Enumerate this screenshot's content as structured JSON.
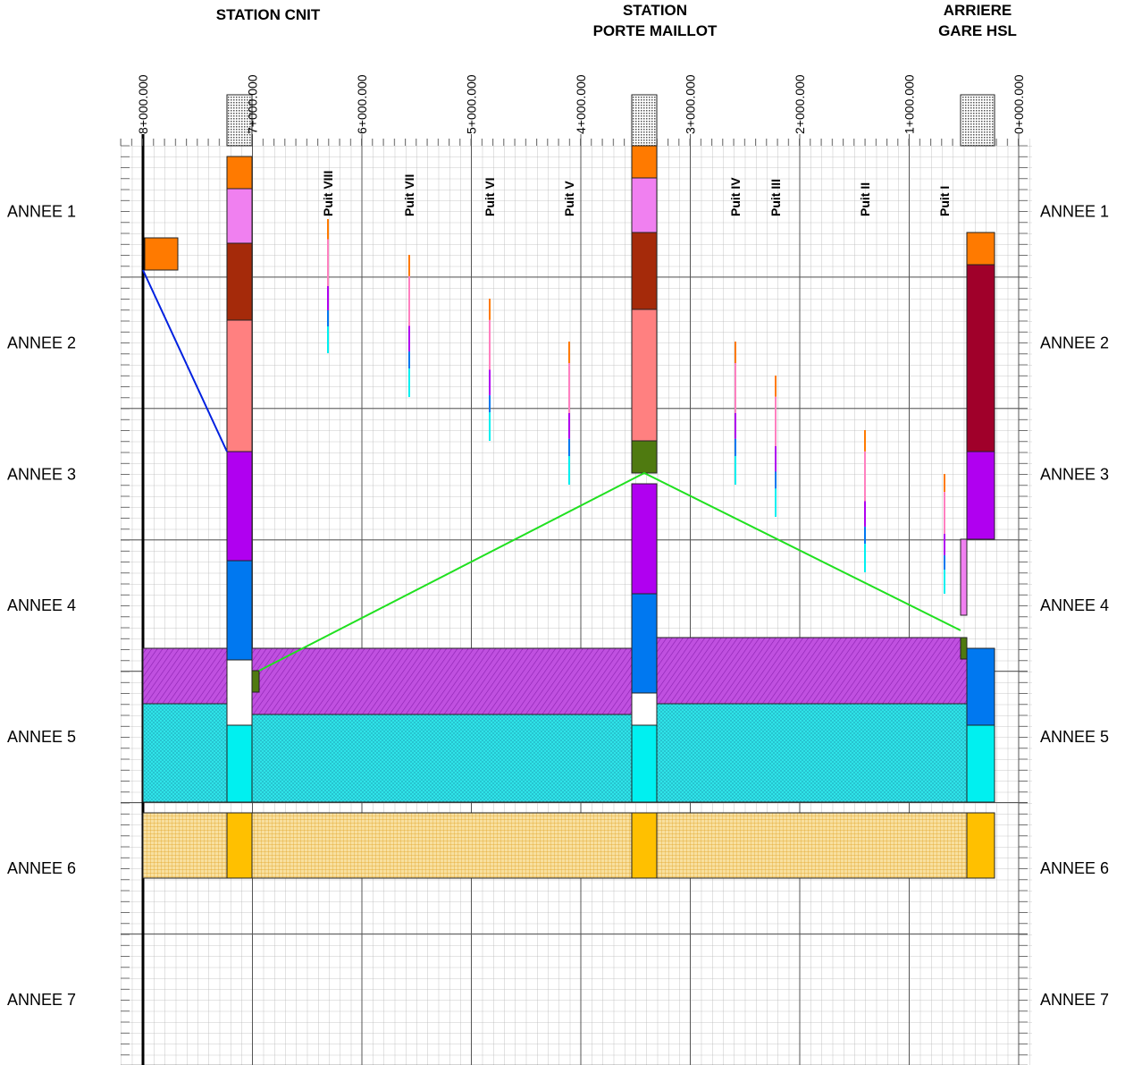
{
  "headers": {
    "station_cnit": "STATION CNIT",
    "station_porte_maillot": [
      "STATION",
      "PORTE MAILLOT"
    ],
    "arriere_gare": [
      "ARRIERE",
      "GARE HSL"
    ]
  },
  "chainages": [
    "8+000.000",
    "7+000.000",
    "6+000.000",
    "5+000.000",
    "4+000.000",
    "3+000.000",
    "2+000.000",
    "1+000.000",
    "0+000.000"
  ],
  "years": [
    "ANNEE 1",
    "ANNEE 2",
    "ANNEE 3",
    "ANNEE 4",
    "ANNEE 5",
    "ANNEE 6",
    "ANNEE 7"
  ],
  "wells": [
    "Puit VIII",
    "Puit VII",
    "Puit VI",
    "Puit V",
    "Puit IV",
    "Puit III",
    "Puit II",
    "Puit I"
  ]
}
